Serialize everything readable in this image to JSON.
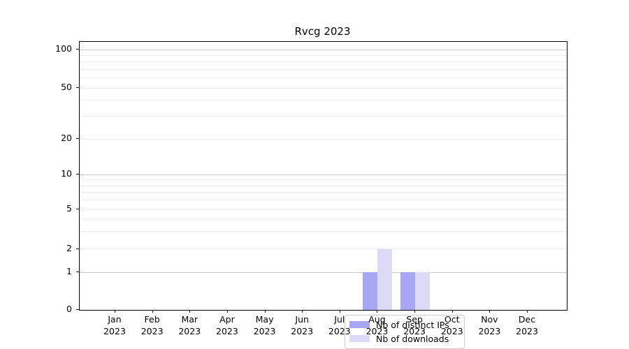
{
  "figure": {
    "background": "#ffffff"
  },
  "chart_data": {
    "type": "bar",
    "title": "Rvcg 2023",
    "categories": [
      "Jan 2023",
      "Feb 2023",
      "Mar 2023",
      "Apr 2023",
      "May 2023",
      "Jun 2023",
      "Jul 2023",
      "Aug 2023",
      "Sep 2023",
      "Oct 2023",
      "Nov 2023",
      "Dec 2023"
    ],
    "series": [
      {
        "name": "Nb of distinct IPs",
        "color": "#a7a7f5",
        "values": [
          0,
          0,
          0,
          0,
          0,
          0,
          0,
          1,
          1,
          0,
          0,
          0
        ]
      },
      {
        "name": "Nb of downloads",
        "color": "#dbdbf8",
        "values": [
          0,
          0,
          0,
          0,
          0,
          0,
          0,
          2,
          1,
          0,
          0,
          0
        ]
      }
    ],
    "yscale": "symlog",
    "ylim": [
      0,
      100
    ],
    "yticks": [
      0,
      1,
      2,
      5,
      10,
      20,
      50,
      100
    ],
    "minor_yticks": [
      3,
      4,
      6,
      7,
      8,
      9,
      30,
      40,
      60,
      70,
      80,
      90
    ],
    "major_grid_values": [
      1,
      10,
      100
    ],
    "grid": true,
    "xlabel": "",
    "ylabel": "",
    "legend_position": "lower center"
  }
}
